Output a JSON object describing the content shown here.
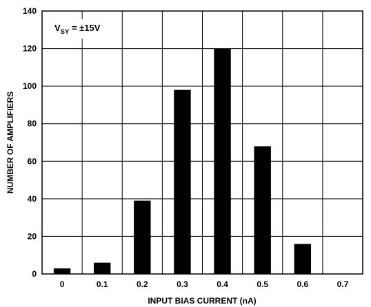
{
  "chart_data": {
    "type": "bar",
    "categories": [
      "0",
      "0.1",
      "0.2",
      "0.3",
      "0.4",
      "0.5",
      "0.6",
      "0.7"
    ],
    "values": [
      3,
      6,
      39,
      98,
      120,
      68,
      16,
      0
    ],
    "xlabel": "INPUT BIAS CURRENT (nA)",
    "ylabel": "NUMBER OF AMPLIFIERS",
    "ylim": [
      0,
      140
    ],
    "yticks": [
      0,
      20,
      40,
      60,
      80,
      100,
      120,
      140
    ],
    "grid": true,
    "bar_color": "#000000",
    "annotation": {
      "main": "V",
      "subscript": "SY",
      "rest": " = ±15V"
    }
  }
}
